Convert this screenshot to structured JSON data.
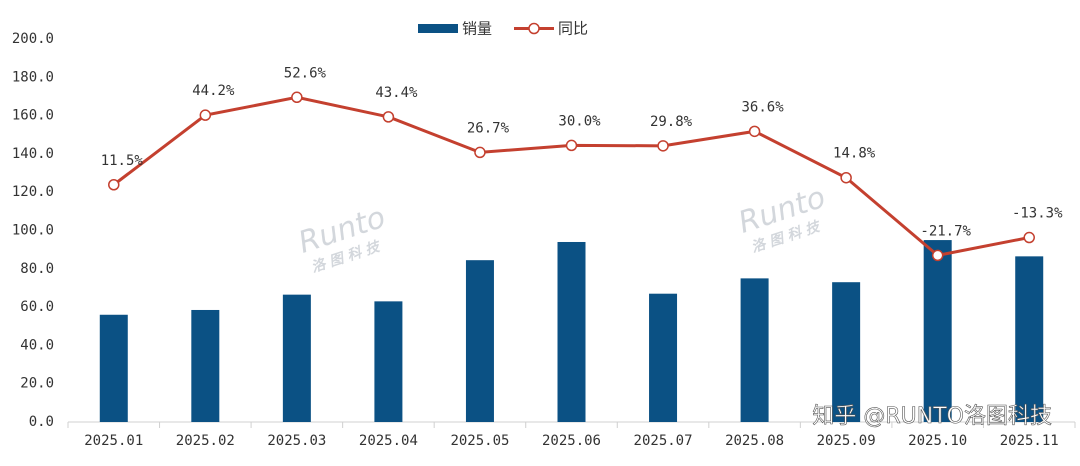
{
  "chart_data": {
    "type": "bar_line",
    "categories": [
      "2025.01",
      "2025.02",
      "2025.03",
      "2025.04",
      "2025.05",
      "2025.06",
      "2025.07",
      "2025.08",
      "2025.09",
      "2025.10",
      "2025.11"
    ],
    "series": [
      {
        "name": "销量",
        "type": "bar",
        "color": "#0b5184",
        "values": [
          56,
          58.5,
          66.5,
          63,
          84.5,
          94,
          67,
          75,
          73,
          95,
          86.5
        ]
      },
      {
        "name": "同比",
        "type": "line",
        "axis": "y2",
        "color": "#c4402f",
        "values": [
          11.5,
          44.2,
          52.6,
          43.4,
          26.7,
          30.0,
          29.8,
          36.6,
          14.8,
          -21.7,
          -13.3
        ],
        "value_labels": [
          "11.5%",
          "44.2%",
          "52.6%",
          "43.4%",
          "26.7%",
          "30.0%",
          "29.8%",
          "36.6%",
          "14.8%",
          "-21.7%",
          "-13.3%"
        ]
      }
    ],
    "ylim": [
      0,
      200
    ],
    "yticks": [
      {
        "value": 0,
        "label": "0.0"
      },
      {
        "value": 20,
        "label": "20.0"
      },
      {
        "value": 40,
        "label": "40.0"
      },
      {
        "value": 60,
        "label": "60.0"
      },
      {
        "value": 80,
        "label": "80.0"
      },
      {
        "value": 100,
        "label": "100.0"
      },
      {
        "value": 120,
        "label": "120.0"
      },
      {
        "value": 140,
        "label": "140.0"
      },
      {
        "value": 160,
        "label": "160.0"
      },
      {
        "value": 180,
        "label": "180.0"
      },
      {
        "value": 200,
        "label": "200.0"
      }
    ],
    "y2lim": [
      -100,
      80
    ],
    "legend": "top",
    "watermark": {
      "logo": "Runto",
      "logo_sub": "洛 图 科 技",
      "credit": "知乎 @RUNTO洛图科技"
    }
  }
}
